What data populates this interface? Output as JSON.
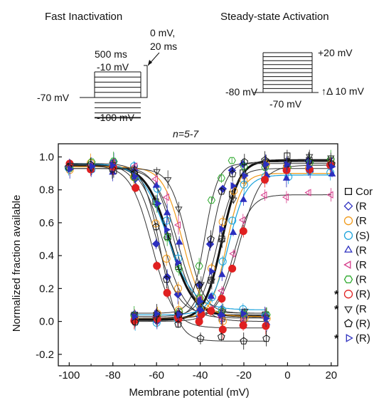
{
  "protocols": {
    "fast_inactivation": {
      "title": "Fast Inactivation",
      "duration": "500 ms",
      "prepulse": "-10 mV",
      "test_pulse": "0 mV,",
      "test_duration": "20 ms",
      "holding": "-70 mV",
      "min_step": "-100 mV"
    },
    "steady_state_activation": {
      "title": "Steady-state Activation",
      "max_step": "+20 mV",
      "holding": "-80 mV",
      "min_step": "-70 mV",
      "increment": "↑Δ 10 mV"
    }
  },
  "chart_data": {
    "type": "scatter",
    "annotation": "n=5-7",
    "xlabel": "Membrane potential (mV)",
    "ylabel": "Normalized fraction available",
    "xlim": [
      -105,
      23
    ],
    "ylim": [
      -0.27,
      1.08
    ],
    "xticks": [
      "-100",
      "-80",
      "-60",
      "-40",
      "-20",
      "0",
      "20"
    ],
    "yticks": [
      "-0.2",
      "0.0",
      "0.2",
      "0.4",
      "0.6",
      "0.8",
      "1.0"
    ],
    "grid": false,
    "legend_position": "right (cropped)",
    "legend": [
      {
        "label": "Cor",
        "marker": "square",
        "color": "#111111",
        "filled": false,
        "starred": false
      },
      {
        "label": "(R",
        "marker": "diamond",
        "color": "#2c2fbf",
        "filled": false,
        "starred": false
      },
      {
        "label": "(R",
        "marker": "circle",
        "color": "#f09a1a",
        "filled": false,
        "starred": false
      },
      {
        "label": "(S)",
        "marker": "circle",
        "color": "#1ba3dc",
        "filled": false,
        "starred": false
      },
      {
        "label": "(R",
        "marker": "triangle-up",
        "color": "#2c2fbf",
        "filled": false,
        "starred": false
      },
      {
        "label": "(R",
        "marker": "triangle-left",
        "color": "#d63a8a",
        "filled": false,
        "starred": false
      },
      {
        "label": "(R",
        "marker": "hexagon",
        "color": "#2aa82a",
        "filled": false,
        "starred": false
      },
      {
        "label": "(R)",
        "marker": "circle",
        "color": "#e02020",
        "filled": false,
        "starred": true
      },
      {
        "label": "(R",
        "marker": "triangle-down",
        "color": "#333333",
        "filled": false,
        "starred": true
      },
      {
        "label": "(R)",
        "marker": "pentagon",
        "color": "#111111",
        "filled": false,
        "starred": false
      },
      {
        "label": "(R)",
        "marker": "triangle-right",
        "color": "#2c2fbf",
        "filled": false,
        "starred": true
      }
    ],
    "inactivation_x": [
      -100,
      -90,
      -80,
      -70,
      -60,
      -55,
      -50,
      -40,
      -30,
      -20,
      -10
    ],
    "activation_x": [
      -70,
      -60,
      -50,
      -40,
      -35,
      -30,
      -25,
      -20,
      -10,
      0,
      10,
      20
    ],
    "inactivation_fits": [
      {
        "v_half": -54,
        "k": 5.5,
        "top": 0.95,
        "bottom": 0.03,
        "color": "#111111",
        "width": 3
      },
      {
        "v_half": -60,
        "k": 5,
        "top": 0.96,
        "bottom": 0.04,
        "color": "#333333",
        "width": 1
      },
      {
        "v_half": -57,
        "k": 5,
        "top": 0.95,
        "bottom": 0.02,
        "color": "#333333",
        "width": 1
      },
      {
        "v_half": -52,
        "k": 4.5,
        "top": 0.94,
        "bottom": 0.05,
        "color": "#333333",
        "width": 1
      },
      {
        "v_half": -50,
        "k": 5,
        "top": 0.93,
        "bottom": 0.0,
        "color": "#333333",
        "width": 1
      },
      {
        "v_half": -48,
        "k": 4.5,
        "top": 0.94,
        "bottom": 0.03,
        "color": "#f09a1a",
        "width": 1.2
      },
      {
        "v_half": -55,
        "k": 6,
        "top": 0.96,
        "bottom": 0.07,
        "color": "#1ba3dc",
        "width": 1.2
      },
      {
        "v_half": -62,
        "k": 5,
        "top": 0.95,
        "bottom": -0.04,
        "color": "#333333",
        "width": 1
      },
      {
        "v_half": -46,
        "k": 4,
        "top": 0.93,
        "bottom": 0.05,
        "color": "#333333",
        "width": 1
      },
      {
        "v_half": -58,
        "k": 4,
        "top": 0.96,
        "bottom": -0.12,
        "color": "#333333",
        "width": 1
      }
    ],
    "activation_fits": [
      {
        "v_half": -30,
        "k": 4,
        "top": 0.98,
        "bottom": 0.01,
        "color": "#111111",
        "width": 3
      },
      {
        "v_half": -35,
        "k": 3.5,
        "top": 0.97,
        "bottom": 0.02,
        "color": "#333333",
        "width": 1
      },
      {
        "v_half": -32,
        "k": 4,
        "top": 0.93,
        "bottom": 0.03,
        "color": "#333333",
        "width": 1
      },
      {
        "v_half": -28,
        "k": 3.5,
        "top": 0.9,
        "bottom": 0.02,
        "color": "#f09a1a",
        "width": 1.2
      },
      {
        "v_half": -27,
        "k": 4,
        "top": 0.89,
        "bottom": 0.04,
        "color": "#1ba3dc",
        "width": 1.2
      },
      {
        "v_half": -25,
        "k": 4,
        "top": 0.77,
        "bottom": 0.02,
        "color": "#333333",
        "width": 1
      },
      {
        "v_half": -38,
        "k": 3,
        "top": 0.96,
        "bottom": 0.05,
        "color": "#333333",
        "width": 1
      },
      {
        "v_half": -22,
        "k": 5,
        "top": 0.95,
        "bottom": 0.0,
        "color": "#333333",
        "width": 1
      }
    ]
  }
}
